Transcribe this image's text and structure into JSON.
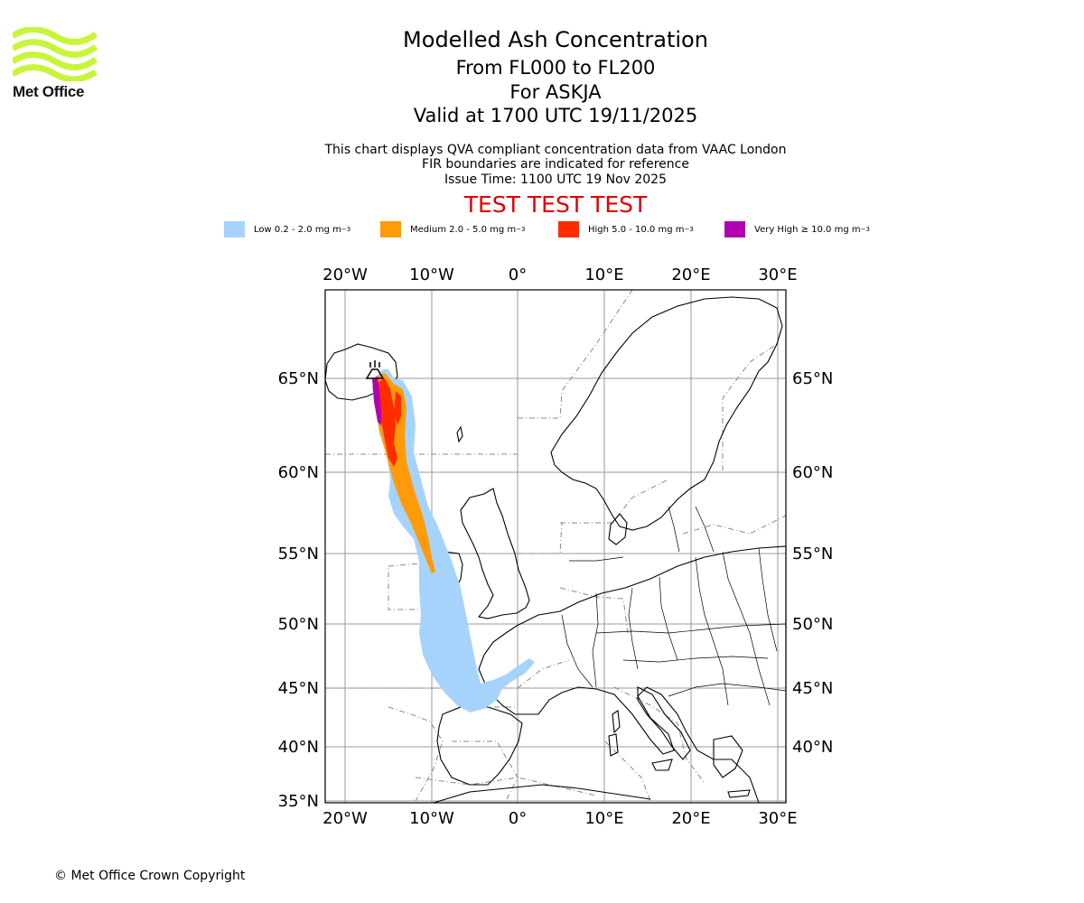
{
  "brand": {
    "name": "Met Office",
    "logo_color": "#c8f53a"
  },
  "header": {
    "title": "Modelled Ash Concentration",
    "levels": "From FL000 to FL200",
    "volcano": "For ASKJA",
    "valid": "Valid at 1700 UTC 19/11/2025"
  },
  "notes": {
    "line1": "This chart displays QVA compliant concentration data from VAAC London",
    "line2": "FIR boundaries are indicated for reference",
    "line3": "Issue Time: 1100 UTC 19 Nov 2025"
  },
  "test_banner": {
    "text": "TEST TEST TEST",
    "color": "#e00000"
  },
  "legend": [
    {
      "label": "Low 0.2 - 2.0 mg m",
      "unit_sup": "−3",
      "color": "#a6d3fb"
    },
    {
      "label": "Medium 2.0 - 5.0 mg m",
      "unit_sup": "−3",
      "color": "#ff9a0a"
    },
    {
      "label": "High 5.0 - 10.0 mg m",
      "unit_sup": "−3",
      "color": "#ff2c00"
    },
    {
      "label": "Very High  ≥  10.0 mg m",
      "unit_sup": "−3",
      "color": "#b000b0"
    }
  ],
  "map": {
    "lon_ticks": [
      "20°W",
      "10°W",
      "0°",
      "10°E",
      "20°E",
      "30°E"
    ],
    "lat_ticks": [
      "65°N",
      "60°N",
      "55°N",
      "50°N",
      "45°N",
      "40°N",
      "35°N"
    ],
    "lat_ticks_right": [
      "65°N",
      "60°N",
      "55°N",
      "50°N",
      "45°N",
      "40°N"
    ]
  },
  "footer": {
    "copyright": "© Met Office Crown Copyright"
  }
}
